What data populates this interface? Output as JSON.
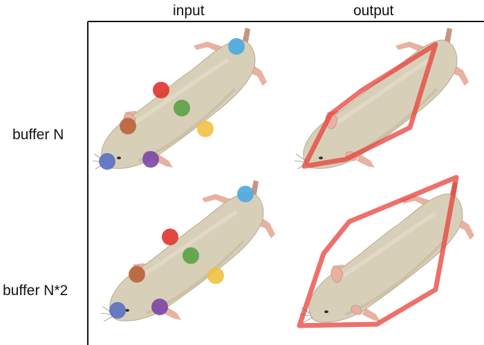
{
  "columns": {
    "input": "input",
    "output": "output"
  },
  "rows": {
    "first": "buffer N",
    "second": "buffer N*2"
  },
  "colors": {
    "body": "#d8cfb9",
    "body_shadow": "#c4b79b",
    "pink": "#e8b1a2",
    "tail": "#c49782",
    "hull": "#e8403a",
    "dot_blue_nose": "#5b6fc4",
    "dot_purple": "#7b47a6",
    "dot_brown": "#b8643a",
    "dot_red": "#e0332e",
    "dot_green": "#5aa145",
    "dot_yellow": "#f2c142",
    "dot_blue_tail": "#4aa9e0"
  }
}
